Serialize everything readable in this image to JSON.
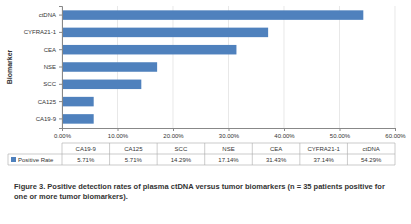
{
  "chart_data": {
    "type": "bar",
    "orientation": "horizontal",
    "title": "Figure 3.  Positive detection rates of plasma ctDNA versus tumor biomarkers (n = 35 patients positive for one or more tumor biomarkers).",
    "ylabel": "Biomarker",
    "categories": [
      "CA19-9",
      "CA125",
      "SCC",
      "NSE",
      "CEA",
      "CYFRA21-1",
      "ctDNA"
    ],
    "series": [
      {
        "name": "Positive Rate",
        "color": "#4f81bd",
        "values": [
          5.71,
          5.71,
          14.29,
          17.14,
          31.43,
          37.14,
          54.29
        ],
        "value_labels": [
          "5.71%",
          "5.71%",
          "14.29%",
          "17.14%",
          "31.43%",
          "37.14%",
          "54.29%"
        ]
      }
    ],
    "xlim": [
      0,
      60
    ],
    "xticks": [
      {
        "value": 0,
        "label": "0.00%"
      },
      {
        "value": 10,
        "label": "10.00%"
      },
      {
        "value": 20,
        "label": "20.00%"
      },
      {
        "value": 30,
        "label": "30.00%"
      },
      {
        "value": 40,
        "label": "40.00%"
      },
      {
        "value": 50,
        "label": "50.00%"
      },
      {
        "value": 60,
        "label": "60.00%"
      }
    ],
    "grid": true
  }
}
